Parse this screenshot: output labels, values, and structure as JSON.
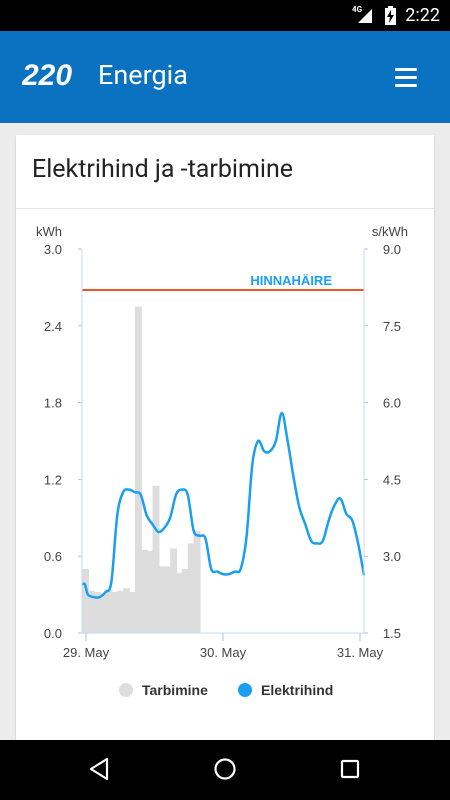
{
  "status_bar": {
    "network": "4G",
    "time": "2:22",
    "icons": [
      "signal-icon",
      "battery-charging-icon"
    ]
  },
  "app_bar": {
    "logo_text": "220",
    "title": "Energia",
    "menu_icon": "hamburger-menu-icon",
    "color": "#0a72c1"
  },
  "card": {
    "title": "Elektrihind ja -tarbimine"
  },
  "chart_data": {
    "type": "bar",
    "left_axis": {
      "unit": "kWh",
      "ticks": [
        "3.0",
        "2.4",
        "1.8",
        "1.2",
        "0.6",
        "0.0"
      ],
      "ylim": [
        0,
        3.0
      ]
    },
    "right_axis": {
      "unit": "s/kWh",
      "ticks": [
        "9.0",
        "7.5",
        "6.0",
        "4.5",
        "3.0",
        "1.5"
      ],
      "ylim": [
        1.5,
        9.0
      ]
    },
    "x_ticks": [
      "29. May",
      "30. May",
      "31. May"
    ],
    "xlim": [
      0,
      48
    ],
    "threshold": {
      "label": "HINNAHÄIRE",
      "value": 8.2,
      "axis": "right",
      "color": "#e8562a"
    },
    "series": [
      {
        "name": "Tarbimine",
        "type": "bar",
        "axis": "left",
        "color": "#dddddd",
        "values": [
          0.5,
          0.33,
          0.32,
          0.31,
          0.34,
          0.32,
          0.33,
          0.35,
          0.32,
          2.55,
          0.65,
          0.64,
          1.15,
          0.52,
          0.52,
          0.66,
          0.47,
          0.5,
          0.7,
          0.8
        ]
      },
      {
        "name": "Elektrihind",
        "type": "line",
        "axis": "left",
        "color": "#1a9ff0",
        "points": [
          [
            0,
            0.38
          ],
          [
            0.5,
            0.38
          ],
          [
            1,
            0.3
          ],
          [
            2,
            0.28
          ],
          [
            3,
            0.28
          ],
          [
            4,
            0.32
          ],
          [
            5,
            0.4
          ],
          [
            6,
            0.92
          ],
          [
            7,
            1.1
          ],
          [
            8,
            1.12
          ],
          [
            9,
            1.1
          ],
          [
            10,
            1.08
          ],
          [
            11,
            0.92
          ],
          [
            12,
            0.85
          ],
          [
            13,
            0.79
          ],
          [
            14,
            0.82
          ],
          [
            15,
            0.9
          ],
          [
            16,
            1.08
          ],
          [
            17,
            1.12
          ],
          [
            18,
            1.08
          ],
          [
            19,
            0.8
          ],
          [
            20,
            0.76
          ],
          [
            21,
            0.74
          ],
          [
            22,
            0.5
          ],
          [
            23,
            0.48
          ],
          [
            24,
            0.46
          ],
          [
            25,
            0.46
          ],
          [
            26,
            0.48
          ],
          [
            27,
            0.5
          ],
          [
            28,
            0.75
          ],
          [
            29,
            1.32
          ],
          [
            30,
            1.5
          ],
          [
            31,
            1.42
          ],
          [
            32,
            1.42
          ],
          [
            33,
            1.5
          ],
          [
            34,
            1.72
          ],
          [
            35,
            1.5
          ],
          [
            36,
            1.22
          ],
          [
            37,
            0.98
          ],
          [
            38,
            0.85
          ],
          [
            39,
            0.72
          ],
          [
            40,
            0.7
          ],
          [
            41,
            0.72
          ],
          [
            42,
            0.88
          ],
          [
            43,
            1.0
          ],
          [
            44,
            1.05
          ],
          [
            45,
            0.93
          ],
          [
            46,
            0.88
          ],
          [
            47,
            0.7
          ],
          [
            48,
            0.45
          ]
        ]
      }
    ],
    "legend": {
      "position": "bottom"
    }
  }
}
